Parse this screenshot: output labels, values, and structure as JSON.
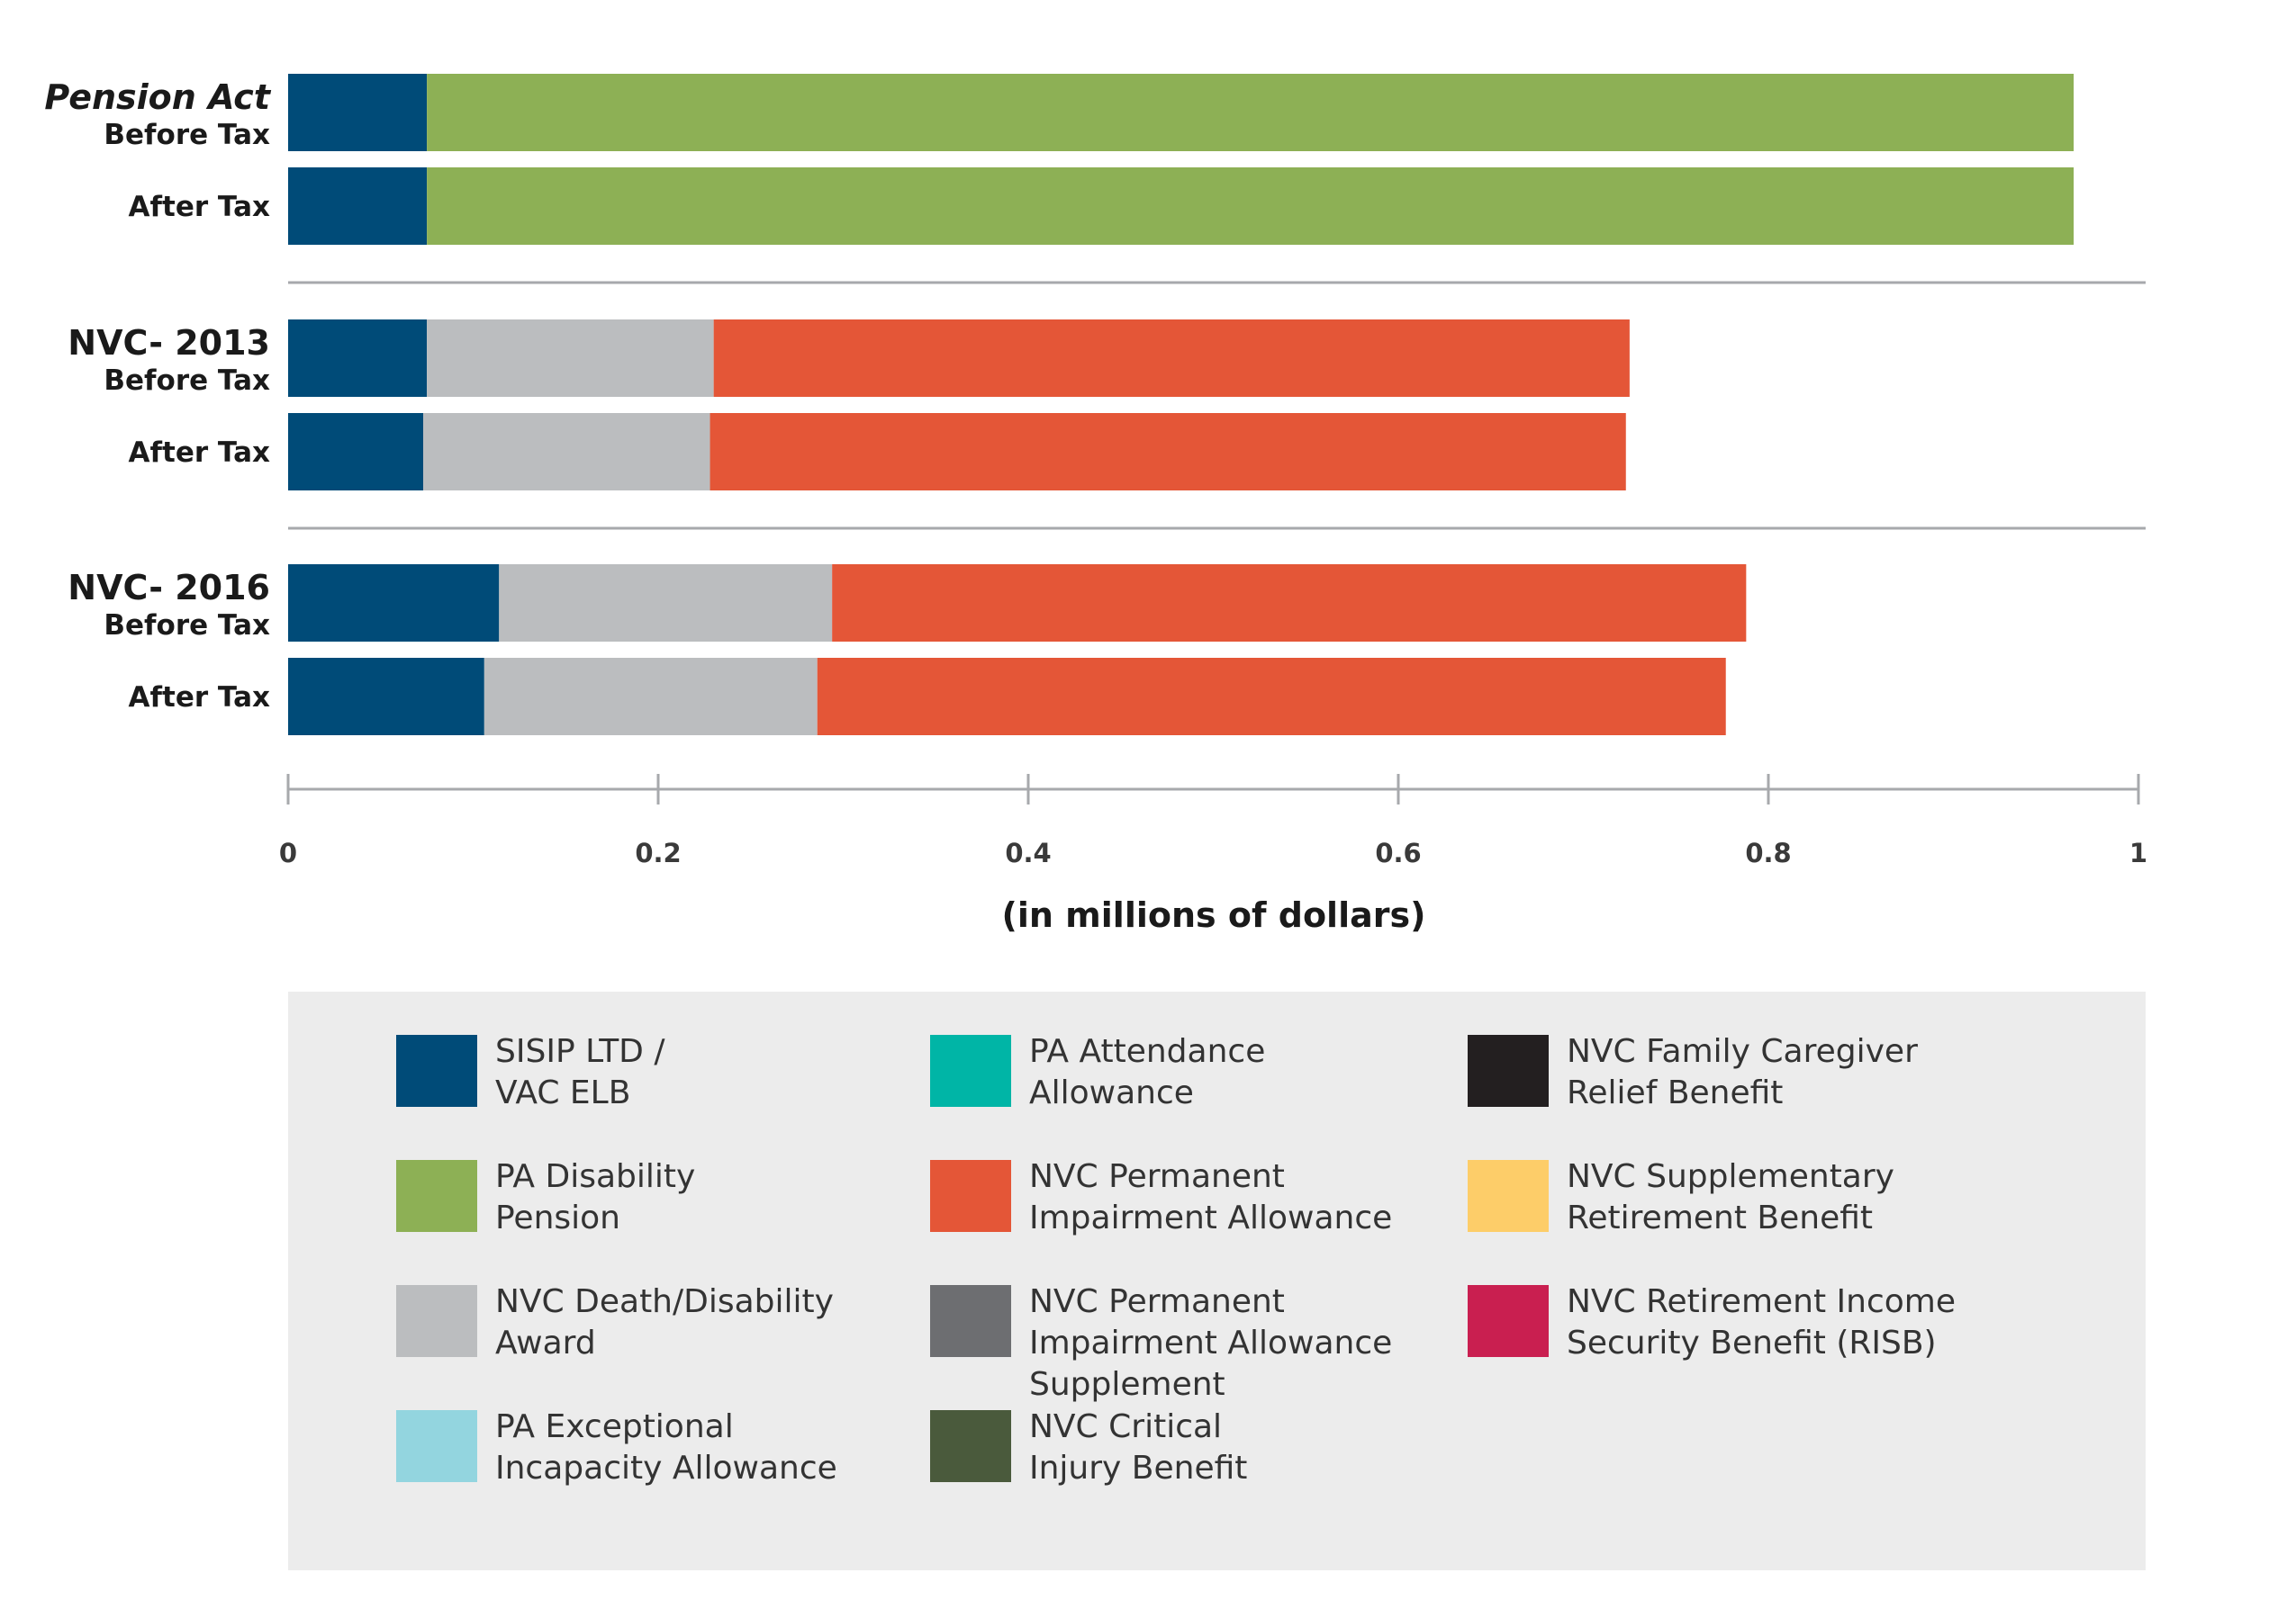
{
  "chart_data": {
    "type": "bar",
    "orientation": "horizontal",
    "stacked": true,
    "xlabel": "(in millions of dollars)",
    "xlim": [
      0,
      1
    ],
    "xticks": [
      "0",
      "0.2",
      "0.4",
      "0.6",
      "0.8",
      "1"
    ],
    "grid": false,
    "groups": [
      {
        "name": "Pension Act",
        "italic": true,
        "rows": [
          {
            "label": "Before Tax",
            "segments": [
              {
                "series": "SISIP LTD / VAC ELB",
                "value": 0.075
              },
              {
                "series": "PA Disability Pension",
                "value": 0.89
              }
            ]
          },
          {
            "label": "After Tax",
            "segments": [
              {
                "series": "SISIP LTD / VAC ELB",
                "value": 0.075
              },
              {
                "series": "PA Disability Pension",
                "value": 0.89
              }
            ]
          }
        ]
      },
      {
        "name": "NVC- 2013",
        "italic": false,
        "rows": [
          {
            "label": "Before Tax",
            "segments": [
              {
                "series": "SISIP LTD / VAC ELB",
                "value": 0.075
              },
              {
                "series": "NVC Death/Disability Award",
                "value": 0.155
              },
              {
                "series": "NVC Permanent Impairment Allowance",
                "value": 0.495
              }
            ]
          },
          {
            "label": "After Tax",
            "segments": [
              {
                "series": "SISIP LTD / VAC ELB",
                "value": 0.073
              },
              {
                "series": "NVC Death/Disability Award",
                "value": 0.155
              },
              {
                "series": "NVC Permanent Impairment Allowance",
                "value": 0.495
              }
            ]
          }
        ]
      },
      {
        "name": "NVC- 2016",
        "italic": false,
        "rows": [
          {
            "label": "Before Tax",
            "segments": [
              {
                "series": "SISIP LTD / VAC ELB",
                "value": 0.114
              },
              {
                "series": "NVC Death/Disability Award",
                "value": 0.18
              },
              {
                "series": "NVC Permanent Impairment Allowance",
                "value": 0.494
              }
            ]
          },
          {
            "label": "After Tax",
            "segments": [
              {
                "series": "SISIP LTD / VAC ELB",
                "value": 0.106
              },
              {
                "series": "NVC Death/Disability Award",
                "value": 0.18
              },
              {
                "series": "NVC Permanent Impairment Allowance",
                "value": 0.491
              }
            ]
          }
        ]
      }
    ],
    "legend": {
      "placement": "bottom",
      "columns": [
        [
          {
            "lines": [
              "SISIP LTD /",
              "VAC ELB"
            ],
            "series": "SISIP LTD / VAC ELB",
            "color": "#004b78"
          },
          {
            "lines": [
              "PA Disability",
              "Pension"
            ],
            "series": "PA Disability Pension",
            "color": "#8db055"
          },
          {
            "lines": [
              "NVC Death/Disability",
              "Award"
            ],
            "series": "NVC Death/Disability Award",
            "color": "#bbbdbf"
          },
          {
            "lines": [
              "PA Exceptional",
              "Incapacity Allowance"
            ],
            "series": "PA Exceptional Incapacity Allowance",
            "color": "#93d5df"
          }
        ],
        [
          {
            "lines": [
              "PA Attendance",
              "Allowance"
            ],
            "series": "PA Attendance Allowance",
            "color": "#00b5a6"
          },
          {
            "lines": [
              "NVC Permanent",
              "Impairment Allowance"
            ],
            "series": "NVC Permanent Impairment Allowance",
            "color": "#e45637"
          },
          {
            "lines": [
              "NVC Permanent",
              "Impairment Allowance",
              "Supplement"
            ],
            "series": "NVC Permanent Impairment Allowance Supplement",
            "color": "#6d6e71"
          },
          {
            "lines": [
              "NVC Critical",
              "Injury Benefit"
            ],
            "series": "NVC Critical Injury Benefit",
            "color": "#4a5a3c"
          }
        ],
        [
          {
            "lines": [
              "NVC Family Caregiver",
              "Relief Benefit"
            ],
            "series": "NVC Family Caregiver Relief Benefit",
            "color": "#231f20"
          },
          {
            "lines": [
              "NVC Supplementary",
              "Retirement Benefit"
            ],
            "series": "NVC Supplementary Retirement Benefit",
            "color": "#fdcd69"
          },
          {
            "lines": [
              "NVC Retirement Income",
              "Security Benefit (RISB)"
            ],
            "series": "NVC Retirement Income Security Benefit (RISB)",
            "color": "#c91f50"
          }
        ]
      ]
    }
  },
  "colors": {
    "axis": "#a7a9ac",
    "separator": "#a7a9ac",
    "legend_background": "#ececec"
  }
}
